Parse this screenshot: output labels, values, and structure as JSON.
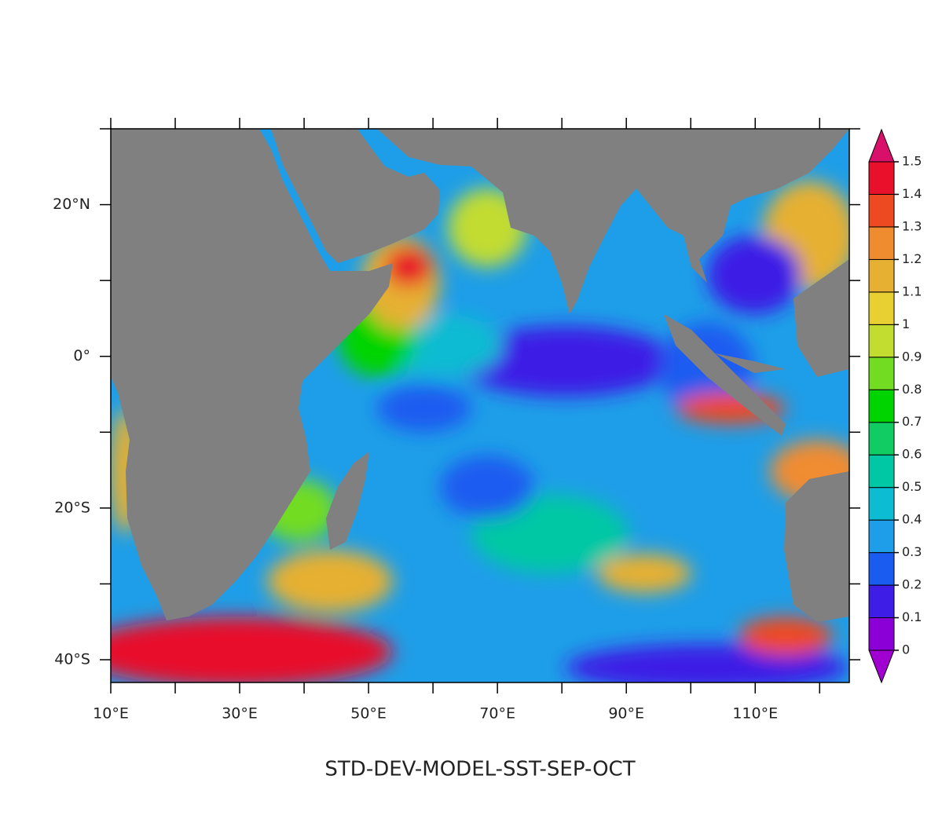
{
  "chart_data": {
    "type": "contour-map",
    "title": "STD-DEV-MODEL-SST-SEP-OCT",
    "xlim": [
      10,
      124.6
    ],
    "ylim": [
      -43,
      30
    ],
    "xticks": [
      {
        "value": 10,
        "label": "10°E"
      },
      {
        "value": 30,
        "label": "30°E"
      },
      {
        "value": 50,
        "label": "50°E"
      },
      {
        "value": 70,
        "label": "70°E"
      },
      {
        "value": 90,
        "label": "90°E"
      },
      {
        "value": 110,
        "label": "110°E"
      }
    ],
    "xminor_ticks": [
      20,
      40,
      60,
      80,
      100,
      120
    ],
    "yticks": [
      {
        "value": 20,
        "label": "20°N"
      },
      {
        "value": 0,
        "label": "0°"
      },
      {
        "value": -20,
        "label": "20°S"
      },
      {
        "value": -40,
        "label": "40°S"
      }
    ],
    "yminor_ticks": [
      30,
      10,
      -10,
      -30
    ],
    "levels": [
      0,
      0.1,
      0.2,
      0.3,
      0.4,
      0.5,
      0.6,
      0.7,
      0.8,
      0.9,
      1,
      1.1,
      1.2,
      1.3,
      1.4,
      1.5
    ],
    "colors": [
      "#8c00d8",
      "#3e1ee6",
      "#1a5cf0",
      "#1e9ee8",
      "#0cbcd2",
      "#00c8a4",
      "#10cc62",
      "#00d400",
      "#72dc22",
      "#c2dc30",
      "#e8d032",
      "#e6b032",
      "#f08c30",
      "#ee4a22",
      "#e8102a"
    ],
    "under_color": "#a000d0",
    "over_color": "#d8106a",
    "land_color": "#808080"
  }
}
